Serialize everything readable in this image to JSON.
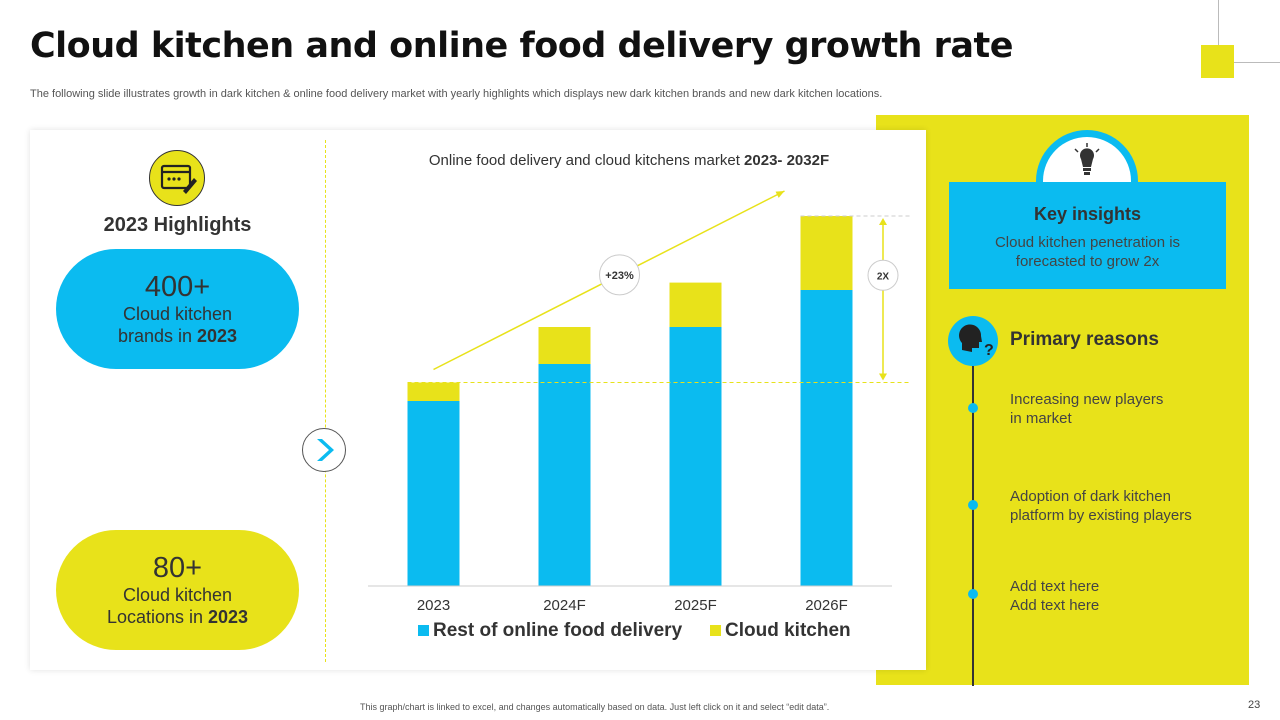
{
  "title": "Cloud kitchen and online food delivery growth rate",
  "subtitle": "The following slide illustrates growth in dark kitchen & online food delivery market with yearly highlights which displays new dark kitchen brands and new dark kitchen locations.",
  "highlights": {
    "title": "2023 Highlights",
    "brands": {
      "number": "400+",
      "line1": "Cloud kitchen",
      "line2_prefix": "brands in ",
      "year": "2023"
    },
    "locations": {
      "number": "80+",
      "line1": "Cloud kitchen",
      "line2_prefix": "Locations in ",
      "year": "2023"
    }
  },
  "chart_title_prefix": "Online food delivery and cloud kitchens market ",
  "chart_title_bold": "2023- 2032F",
  "chart_data": {
    "type": "bar",
    "stacked": true,
    "title": "Online food delivery and cloud kitchens market 2023- 2032F",
    "categories": [
      "2023",
      "2024F",
      "2025F",
      "2026F"
    ],
    "series": [
      {
        "name": "Rest of online food delivery",
        "color": "#0bbbf0",
        "values": [
          50,
          60,
          70,
          80
        ]
      },
      {
        "name": "Cloud kitchen",
        "color": "#e8e21a",
        "values": [
          5,
          10,
          12,
          20
        ]
      }
    ],
    "ylim": [
      0,
      100
    ],
    "legend": "bottom",
    "annotations": {
      "growth_label": "+23%",
      "multiplier_label": "2X"
    }
  },
  "key_insights": {
    "title": "Key insights",
    "text": "Cloud kitchen penetration is forecasted to grow 2x"
  },
  "primary_reasons": {
    "title": "Primary reasons",
    "items": [
      {
        "line1": "Increasing new players",
        "line2": "in market"
      },
      {
        "line1": "Adoption of dark kitchen",
        "line2": "platform by existing players"
      },
      {
        "line1": "Add text here",
        "line2": "Add text here"
      }
    ]
  },
  "footer": "This graph/chart is linked to excel, and changes automatically based on data. Just left click on it and select “edit data”.",
  "page_number": "23",
  "colors": {
    "accent_yellow": "#e8e21a",
    "accent_blue": "#0bbbf0"
  }
}
